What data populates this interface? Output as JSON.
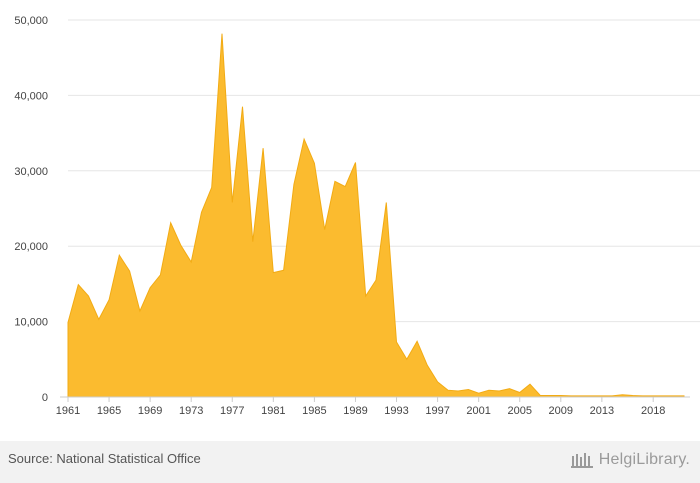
{
  "chart_data": {
    "type": "area",
    "title": "",
    "xlabel": "",
    "ylabel": "",
    "ylim": [
      0,
      50000
    ],
    "yticks": [
      "0",
      "10,000",
      "20,000",
      "30,000",
      "40,000",
      "50,000"
    ],
    "ytick_values": [
      0,
      10000,
      20000,
      30000,
      40000,
      50000
    ],
    "xticks": [
      "1961",
      "1965",
      "1969",
      "1973",
      "1977",
      "1981",
      "1985",
      "1989",
      "1993",
      "1997",
      "2001",
      "2005",
      "2009",
      "2013",
      "2018"
    ],
    "grid": true,
    "legend": "none",
    "color": "#fbbb2f",
    "line_color": "#f2ab14",
    "x": [
      1961,
      1962,
      1963,
      1964,
      1965,
      1966,
      1967,
      1968,
      1969,
      1970,
      1971,
      1972,
      1973,
      1974,
      1975,
      1976,
      1977,
      1978,
      1979,
      1980,
      1981,
      1982,
      1983,
      1984,
      1985,
      1986,
      1987,
      1988,
      1989,
      1990,
      1991,
      1992,
      1993,
      1994,
      1995,
      1996,
      1997,
      1998,
      1999,
      2000,
      2001,
      2002,
      2003,
      2004,
      2005,
      2006,
      2007,
      2008,
      2009,
      2010,
      2011,
      2012,
      2013,
      2014,
      2015,
      2016,
      2017,
      2018,
      2019,
      2020,
      2021
    ],
    "values": [
      9900,
      14900,
      13400,
      10300,
      12900,
      18800,
      16700,
      11400,
      14500,
      16200,
      23100,
      20100,
      17900,
      24500,
      27800,
      48200,
      25800,
      38500,
      20600,
      33000,
      16500,
      16800,
      28200,
      34200,
      31000,
      22200,
      28600,
      27900,
      31100,
      13400,
      15500,
      25800,
      7300,
      5000,
      7400,
      4200,
      2000,
      900,
      800,
      1000,
      500,
      900,
      800,
      1100,
      600,
      1700,
      200,
      200,
      200,
      150,
      150,
      150,
      150,
      150,
      300,
      200,
      150,
      150,
      150,
      150,
      150
    ]
  },
  "footer": {
    "source": "Source: National Statistical Office",
    "logo_text": "HelgiLibrary."
  }
}
